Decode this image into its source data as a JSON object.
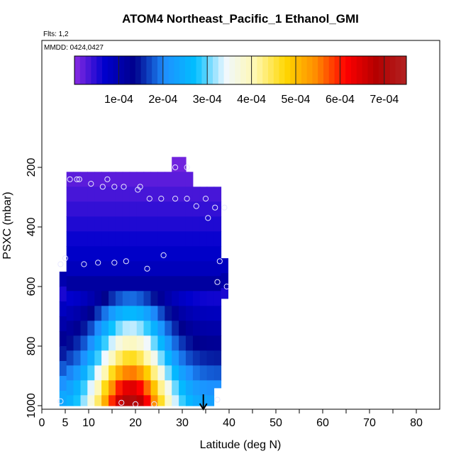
{
  "chart_data": {
    "type": "heatmap",
    "title": "ATOM4 Northeast_Pacific_1 Ethanol_GMI",
    "flights_note": "Flts: 1,2",
    "date_note": "MMDD: 0424,0427",
    "xlabel": "Latitude (deg N)",
    "ylabel": "PSXC (mbar)",
    "xlim": [
      0,
      85
    ],
    "ylim": [
      1000,
      0
    ],
    "x_ticks": [
      0,
      5,
      10,
      20,
      30,
      40,
      50,
      60,
      70,
      80
    ],
    "y_ticks": [
      200,
      400,
      600,
      800,
      1000
    ],
    "colorbar": {
      "min": 0,
      "max": 0.00075,
      "tick_values": [
        0.0001,
        0.0002,
        0.0003,
        0.0004,
        0.0005,
        0.0006,
        0.0007
      ],
      "tick_labels": [
        "1e-04",
        "2e-04",
        "3e-04",
        "4e-04",
        "5e-04",
        "6e-04",
        "7e-04"
      ],
      "colors": [
        "#8a2be2",
        "#0000cd",
        "#00008b",
        "#1e90ff",
        "#00bfff",
        "#f0f8ff",
        "#fff8b0",
        "#ffd700",
        "#ff8c00",
        "#ff0000",
        "#b30000",
        "#b22222"
      ]
    },
    "columns_lat": [
      4.5,
      6.0,
      7.5,
      9.0,
      10.5,
      12.0,
      13.5,
      15.0,
      16.5,
      18.0,
      19.5,
      21.0,
      22.5,
      24.0,
      25.5,
      27.0,
      28.5,
      30.0,
      31.5,
      33.0,
      34.5,
      36.0,
      37.5,
      39.0
    ],
    "column_top_pressure": [
      550,
      215,
      215,
      215,
      215,
      215,
      215,
      215,
      215,
      215,
      215,
      215,
      215,
      215,
      215,
      215,
      165,
      165,
      215,
      265,
      265,
      265,
      265,
      505
    ],
    "column_bottom_pressure": [
      1000,
      1000,
      1000,
      1000,
      1000,
      1000,
      1000,
      1000,
      1000,
      1000,
      1000,
      1000,
      1000,
      1000,
      1000,
      1000,
      1000,
      1000,
      1000,
      1000,
      1000,
      1000,
      940,
      640
    ],
    "profile_pressure": [
      175,
      225,
      275,
      325,
      375,
      425,
      475,
      525,
      575,
      625,
      675,
      725,
      775,
      825,
      875,
      925,
      975
    ],
    "profile_values": [
      1e-05,
      2e-05,
      3e-05,
      4e-05,
      5e-05,
      6e-05,
      7e-05,
      8e-05,
      0.0001,
      0.00015,
      0.00022,
      0.00028,
      0.00034,
      0.0004,
      0.00048,
      0.00056,
      0.00064
    ],
    "enhancement_center_lat": 19,
    "enhancement_width_deg": 5.5,
    "observations": [
      {
        "lat": 4.0,
        "p": 525
      },
      {
        "lat": 5.0,
        "p": 505
      },
      {
        "lat": 6.0,
        "p": 240
      },
      {
        "lat": 7.5,
        "p": 240
      },
      {
        "lat": 8.0,
        "p": 240
      },
      {
        "lat": 9.0,
        "p": 525
      },
      {
        "lat": 10.5,
        "p": 255
      },
      {
        "lat": 12.0,
        "p": 520
      },
      {
        "lat": 13.0,
        "p": 265
      },
      {
        "lat": 14.0,
        "p": 240
      },
      {
        "lat": 15.5,
        "p": 520
      },
      {
        "lat": 15.5,
        "p": 265
      },
      {
        "lat": 17.5,
        "p": 265
      },
      {
        "lat": 18.0,
        "p": 515
      },
      {
        "lat": 20.5,
        "p": 275
      },
      {
        "lat": 21.0,
        "p": 265
      },
      {
        "lat": 22.5,
        "p": 540
      },
      {
        "lat": 23.0,
        "p": 305
      },
      {
        "lat": 25.5,
        "p": 305
      },
      {
        "lat": 26.0,
        "p": 495
      },
      {
        "lat": 28.5,
        "p": 305
      },
      {
        "lat": 28.5,
        "p": 200
      },
      {
        "lat": 31.0,
        "p": 305
      },
      {
        "lat": 31.0,
        "p": 200
      },
      {
        "lat": 33.0,
        "p": 330
      },
      {
        "lat": 35.0,
        "p": 305
      },
      {
        "lat": 35.5,
        "p": 370
      },
      {
        "lat": 37.0,
        "p": 335
      },
      {
        "lat": 37.5,
        "p": 585
      },
      {
        "lat": 38.0,
        "p": 515
      },
      {
        "lat": 39.0,
        "p": 335
      },
      {
        "lat": 39.5,
        "p": 600
      },
      {
        "lat": 4.0,
        "p": 985
      },
      {
        "lat": 17.0,
        "p": 990
      },
      {
        "lat": 20.0,
        "p": 995
      },
      {
        "lat": 24.0,
        "p": 995
      },
      {
        "lat": 37.5,
        "p": 980
      }
    ],
    "arrow_marker": {
      "lat": 34.5
    }
  }
}
